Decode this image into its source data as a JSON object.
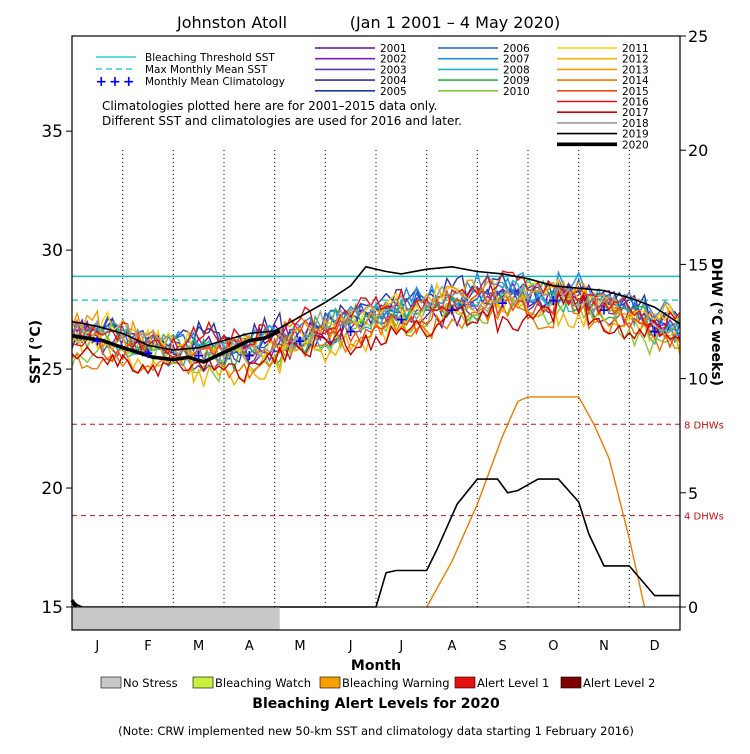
{
  "title": {
    "location": "Johnston Atoll",
    "period": "(Jan 1 2001 – 4 May 2020)"
  },
  "chart_data": {
    "type": "line",
    "xlabel": "Month",
    "ylabel_left": "SST (°C)",
    "ylabel_right": "DHW (°C weeks)",
    "months": [
      "J",
      "F",
      "M",
      "A",
      "M",
      "J",
      "J",
      "A",
      "S",
      "O",
      "N",
      "D"
    ],
    "y_left_ticks": [
      15,
      20,
      25,
      30,
      35
    ],
    "y_right_ticks": [
      0,
      5,
      10,
      15,
      20,
      25
    ],
    "ylim_left": [
      15,
      39
    ],
    "ylim_right": [
      0,
      25
    ],
    "grid": "dotted vertical month lines",
    "legend_placement": "top",
    "reference_lines": {
      "bleaching_threshold_sst": 28.9,
      "max_monthly_mean_sst": 27.9,
      "dhw_8_threshold": 8,
      "dhw_4_threshold": 4,
      "label_8": "8 DHWs",
      "label_4": "4 DHWs"
    },
    "legend_refs": [
      {
        "label": "Bleaching Threshold SST",
        "color": "#00c8c8",
        "style": "solid"
      },
      {
        "label": "Max Monthly Mean SST",
        "color": "#00c8c8",
        "style": "dashed"
      },
      {
        "label": "Monthly Mean Climatology",
        "color": "#0000ff",
        "style": "plus"
      }
    ],
    "notes": [
      "Climatologies plotted here are for 2001–2015 data only.",
      "Different SST and climatologies are used for 2016 and later."
    ],
    "years": [
      {
        "label": "2001",
        "color": "#6a0a9e"
      },
      {
        "label": "2002",
        "color": "#7f1fbf"
      },
      {
        "label": "2003",
        "color": "#5e3aa8"
      },
      {
        "label": "2004",
        "color": "#3a2ea8"
      },
      {
        "label": "2005",
        "color": "#1e3aa6"
      },
      {
        "label": "2006",
        "color": "#1f5fd6"
      },
      {
        "label": "2007",
        "color": "#1e8ee8"
      },
      {
        "label": "2008",
        "color": "#22b3c8"
      },
      {
        "label": "2009",
        "color": "#2ab84a"
      },
      {
        "label": "2010",
        "color": "#86c838"
      },
      {
        "label": "2011",
        "color": "#ffd000"
      },
      {
        "label": "2012",
        "color": "#f8b400"
      },
      {
        "label": "2013",
        "color": "#f39a00"
      },
      {
        "label": "2014",
        "color": "#f07a00"
      },
      {
        "label": "2015",
        "color": "#f04a10"
      },
      {
        "label": "2016",
        "color": "#e81010"
      },
      {
        "label": "2017",
        "color": "#c80000"
      },
      {
        "label": "2018",
        "color": "#9a9a9a"
      },
      {
        "label": "2019",
        "color": "#000000"
      },
      {
        "label": "2020",
        "color": "#000000"
      }
    ],
    "climatology": {
      "x": [
        0.5,
        1.5,
        2.5,
        3.5,
        4.5,
        5.5,
        6.5,
        7.5,
        8.5,
        9.5,
        10.5,
        11.5
      ],
      "y": [
        26.2,
        25.7,
        25.6,
        25.6,
        26.2,
        26.6,
        27.1,
        27.5,
        27.8,
        27.9,
        27.5,
        26.6
      ]
    },
    "sst_2019": {
      "x": [
        0,
        0.5,
        1,
        1.5,
        2,
        2.5,
        3,
        3.5,
        4,
        4.5,
        5,
        5.5,
        5.8,
        6.2,
        6.5,
        7,
        7.5,
        8,
        8.5,
        9,
        9.5,
        10,
        10.5,
        11,
        11.5,
        12
      ],
      "y": [
        27.0,
        26.8,
        26.5,
        26.0,
        25.8,
        25.9,
        26.2,
        26.5,
        26.6,
        27.2,
        27.8,
        28.5,
        29.3,
        29.1,
        29.0,
        29.2,
        29.3,
        29.1,
        29.0,
        28.8,
        28.5,
        28.4,
        28.3,
        28.0,
        27.6,
        26.9
      ]
    },
    "sst_2020": {
      "x": [
        0,
        0.3,
        0.6,
        1,
        1.3,
        1.6,
        2,
        2.3,
        2.6,
        2.9,
        3.2,
        3.5,
        3.8,
        4.1
      ],
      "y": [
        26.4,
        26.3,
        26.2,
        25.9,
        25.7,
        25.5,
        25.4,
        25.5,
        25.3,
        25.6,
        25.9,
        26.2,
        26.3,
        26.6
      ]
    },
    "dhw_2019": {
      "x": [
        0,
        0.1,
        0.2,
        6.0,
        6.2,
        6.4,
        7.0,
        7.2,
        7.6,
        8.0,
        8.4,
        8.6,
        8.8,
        9.2,
        9.6,
        10.0,
        10.2,
        10.5,
        11.0,
        11.5,
        12.0
      ],
      "y": [
        0.3,
        0.1,
        0,
        0,
        1.5,
        1.6,
        1.6,
        2.5,
        4.5,
        5.6,
        5.6,
        5.0,
        5.1,
        5.6,
        5.6,
        4.6,
        3.2,
        1.8,
        1.8,
        0.5,
        0.5
      ]
    },
    "dhw_2020": {
      "x": [
        0,
        0.05,
        0.1
      ],
      "y": [
        0.3,
        0.1,
        0
      ]
    },
    "dhw_2015": {
      "x": [
        7.0,
        7.5,
        8.0,
        8.5,
        8.8,
        9.0,
        9.5,
        10.0,
        10.3,
        10.6,
        11.0,
        11.3
      ],
      "y": [
        0,
        2.0,
        4.5,
        7.5,
        9.0,
        9.2,
        9.2,
        9.2,
        8.0,
        6.5,
        3.0,
        0
      ]
    },
    "alert_levels": [
      {
        "label": "No Stress",
        "color": "#c8c8c8"
      },
      {
        "label": "Bleaching Watch",
        "color": "#c8f03c"
      },
      {
        "label": "Bleaching Warning",
        "color": "#f8a000"
      },
      {
        "label": "Alert Level 1",
        "color": "#e81010"
      },
      {
        "label": "Alert Level 2",
        "color": "#800000"
      }
    ],
    "alert_bar_2020": {
      "status": "No Stress",
      "end_month": 4.1
    }
  },
  "footer": {
    "alert_title": "Bleaching Alert Levels for 2020",
    "note": "(Note: CRW implemented new 50-km SST and climatology data starting 1 February 2016)"
  }
}
